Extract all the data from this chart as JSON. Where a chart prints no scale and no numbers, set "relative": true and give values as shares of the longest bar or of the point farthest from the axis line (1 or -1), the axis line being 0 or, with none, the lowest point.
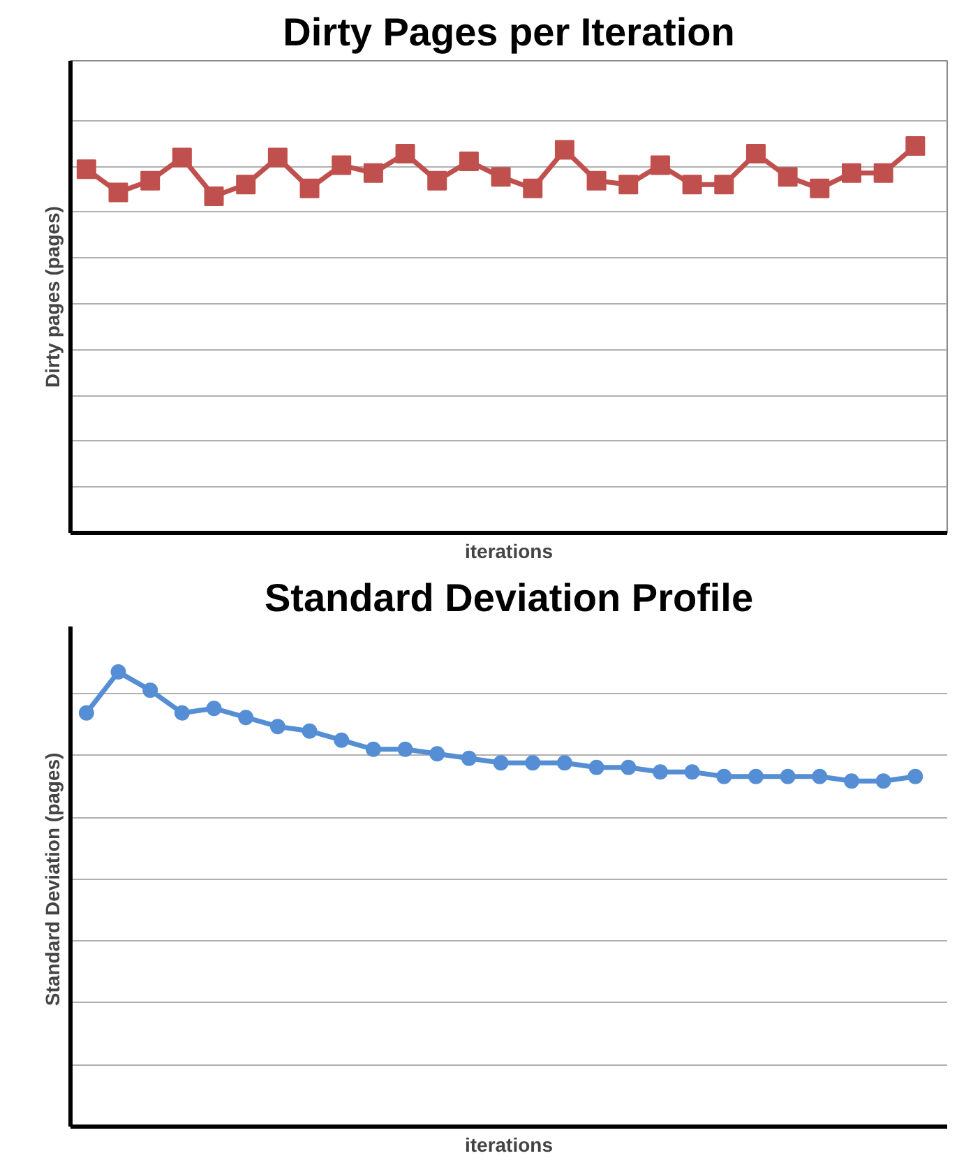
{
  "chart_data": [
    {
      "type": "line",
      "title": "Dirty Pages per Iteration",
      "xlabel": "iterations",
      "ylabel": "Dirty pages (pages)",
      "relative": true,
      "grid": "y",
      "marker": "square",
      "line_style": "solid",
      "categories": [
        null,
        null,
        null,
        null,
        null,
        null,
        null,
        null,
        null,
        null,
        null,
        null,
        null,
        null,
        null,
        null,
        null,
        null,
        null,
        null,
        null,
        null,
        null,
        null,
        null,
        null,
        null
      ],
      "series": [
        {
          "color": "#c0504d",
          "values": [
            0.94,
            0.88,
            0.91,
            0.97,
            0.87,
            0.9,
            0.97,
            0.89,
            0.95,
            0.93,
            0.98,
            0.91,
            0.96,
            0.92,
            0.89,
            0.99,
            0.91,
            0.9,
            0.95,
            0.9,
            0.9,
            0.98,
            0.92,
            0.89,
            0.93,
            0.93,
            1
          ]
        }
      ]
    },
    {
      "type": "line",
      "title": "Standard Deviation Profile",
      "xlabel": "iterations",
      "ylabel": "Standard Deviation  (pages)",
      "relative": true,
      "grid": "y",
      "marker": "circle",
      "line_style": "solid",
      "categories": [
        null,
        null,
        null,
        null,
        null,
        null,
        null,
        null,
        null,
        null,
        null,
        null,
        null,
        null,
        null,
        null,
        null,
        null,
        null,
        null,
        null,
        null,
        null,
        null,
        null,
        null,
        null
      ],
      "series": [
        {
          "color": "#558ed5",
          "values": [
            0.91,
            1,
            0.96,
            0.91,
            0.92,
            0.9,
            0.88,
            0.87,
            0.85,
            0.83,
            0.83,
            0.82,
            0.81,
            0.8,
            0.8,
            0.8,
            0.79,
            0.79,
            0.78,
            0.78,
            0.77,
            0.77,
            0.77,
            0.77,
            0.76,
            0.76,
            0.77
          ]
        }
      ]
    }
  ]
}
